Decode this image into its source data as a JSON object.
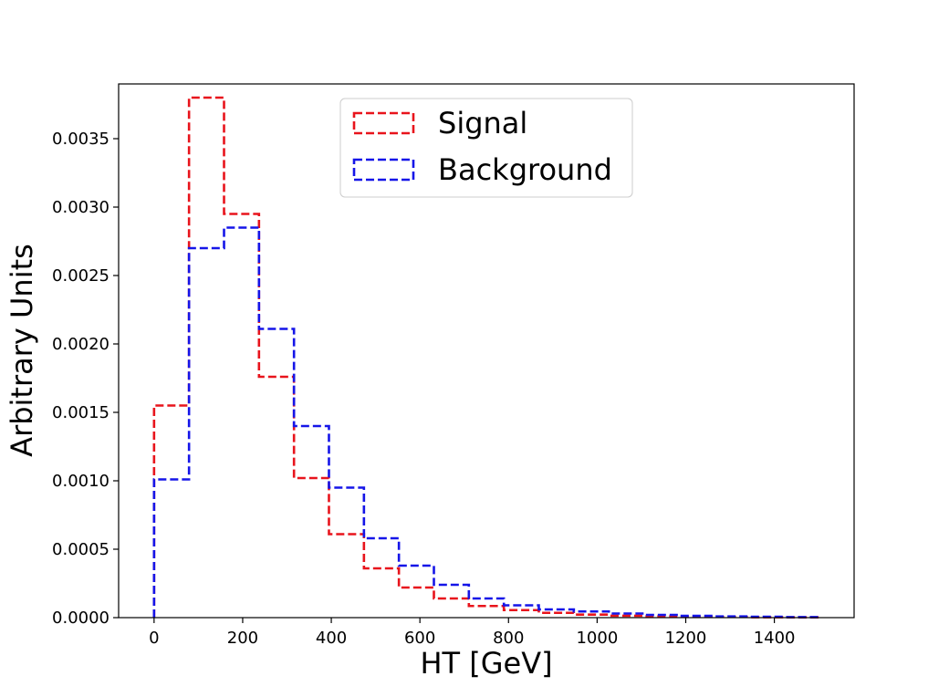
{
  "chart_data": {
    "type": "histogram",
    "title": "",
    "xlabel": "HT [GeV]",
    "ylabel": "Arbitrary Units",
    "xlim": [
      -80,
      1580
    ],
    "ylim": [
      0,
      0.0039
    ],
    "grid": false,
    "legend_position": "top-center",
    "x_ticks": [
      0,
      200,
      400,
      600,
      800,
      1000,
      1200,
      1400
    ],
    "x_tick_labels": [
      "0",
      "200",
      "400",
      "600",
      "800",
      "1000",
      "1200",
      "1400"
    ],
    "y_ticks": [
      0,
      0.0005,
      0.001,
      0.0015,
      0.002,
      0.0025,
      0.003,
      0.0035
    ],
    "y_tick_labels": [
      "0.0000",
      "0.0005",
      "0.0010",
      "0.0015",
      "0.0020",
      "0.0025",
      "0.0030",
      "0.0035"
    ],
    "bin_edges": [
      0,
      78.9,
      157.9,
      236.8,
      315.8,
      394.7,
      473.7,
      552.6,
      631.6,
      710.5,
      789.5,
      868.4,
      947.4,
      1026.3,
      1105.3,
      1184.2,
      1263.2,
      1342.1,
      1421.1,
      1500
    ],
    "series": [
      {
        "name": "Signal",
        "color": "#e8141c",
        "line_style": "dashed",
        "values": [
          0.00155,
          0.0038,
          0.00295,
          0.00176,
          0.00102,
          0.00061,
          0.00036,
          0.00022,
          0.00014,
          8.5e-05,
          5.5e-05,
          3.5e-05,
          2.2e-05,
          1.4e-05,
          1e-05,
          7e-06,
          5e-06,
          3e-06,
          2e-06
        ]
      },
      {
        "name": "Background",
        "color": "#1515e8",
        "line_style": "dashed",
        "values": [
          0.00101,
          0.0027,
          0.00285,
          0.00211,
          0.0014,
          0.00095,
          0.00058,
          0.00038,
          0.00024,
          0.00014,
          9e-05,
          6e-05,
          4.5e-05,
          3e-05,
          2e-05,
          1.3e-05,
          9e-06,
          6e-06,
          4e-06
        ]
      }
    ]
  }
}
